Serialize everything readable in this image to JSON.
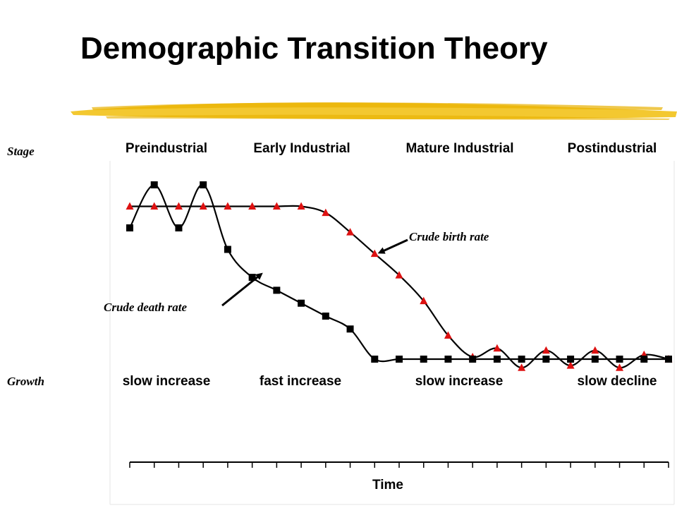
{
  "title": "Demographic Transition Theory",
  "row_labels": {
    "stage": "Stage",
    "growth": "Growth"
  },
  "stages": [
    "Preindustrial",
    "Early Industrial",
    "Mature Industrial",
    "Postindustrial"
  ],
  "growth": [
    "slow increase",
    "fast increase",
    "slow increase",
    "slow decline"
  ],
  "colors": {
    "birth_marker": "#dd1111",
    "death_marker": "#000000",
    "line": "#000000",
    "highlight": "#f2c21a"
  },
  "chart_data": {
    "type": "line",
    "xlabel": "Time",
    "ylabel": "",
    "x": [
      1,
      2,
      3,
      4,
      5,
      6,
      7,
      8,
      9,
      10,
      11,
      12,
      13,
      14,
      15,
      16,
      17,
      18,
      19,
      20,
      21,
      22,
      23
    ],
    "xlim": [
      0.9,
      23.1
    ],
    "ylim": [
      0,
      100
    ],
    "grid": false,
    "series": [
      {
        "name": "Crude birth rate",
        "marker": "triangle",
        "values": [
          82,
          82,
          82,
          82,
          82,
          82,
          82,
          82,
          79,
          70,
          60,
          50,
          38,
          22,
          12,
          16,
          7,
          15,
          8,
          15,
          7,
          13,
          11
        ]
      },
      {
        "name": "Crude death rate",
        "marker": "square",
        "values": [
          72,
          92,
          72,
          92,
          62,
          49,
          43,
          37,
          31,
          25,
          11,
          11,
          11,
          11,
          11,
          11,
          11,
          11,
          11,
          11,
          11,
          11,
          11
        ]
      }
    ],
    "annotations": [
      {
        "text": "Crude birth rate",
        "points_to": "Crude birth rate"
      },
      {
        "text": "Crude death rate",
        "points_to": "Crude death rate"
      }
    ]
  }
}
